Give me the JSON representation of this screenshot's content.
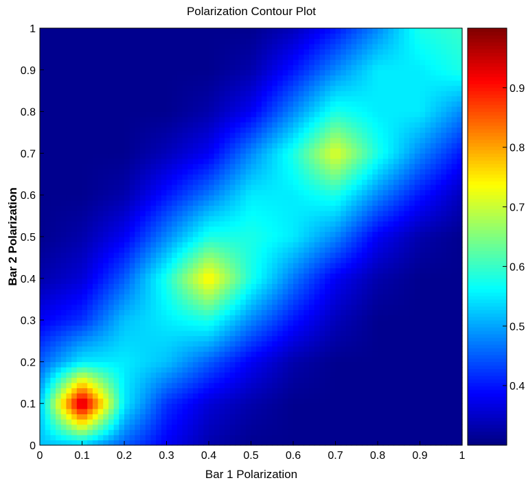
{
  "chart_data": {
    "type": "heatmap",
    "title": "Polarization Contour Plot",
    "xlabel": "Bar 1 Polarization",
    "ylabel": "Bar 2 Polarization",
    "xlim": [
      0,
      1
    ],
    "ylim": [
      0,
      1
    ],
    "x_ticks": [
      "0",
      "0.1",
      "0.2",
      "0.3",
      "0.4",
      "0.5",
      "0.6",
      "0.7",
      "0.8",
      "0.9",
      "1"
    ],
    "y_ticks": [
      "0",
      "0.1",
      "0.2",
      "0.3",
      "0.4",
      "0.5",
      "0.6",
      "0.7",
      "0.8",
      "0.9",
      "1"
    ],
    "colorbar": {
      "range": [
        0.3,
        1.0
      ],
      "ticks": [
        "0.4",
        "0.5",
        "0.6",
        "0.7",
        "0.8",
        "0.9"
      ],
      "colormap": "jet"
    },
    "grid_x": [
      0,
      0.1,
      0.2,
      0.3,
      0.4,
      0.5,
      0.6,
      0.7,
      0.8,
      0.9,
      1.0
    ],
    "grid_y": [
      0,
      0.1,
      0.2,
      0.3,
      0.4,
      0.5,
      0.6,
      0.7,
      0.8,
      0.9,
      1.0
    ],
    "values": [
      [
        0.52,
        0.52,
        0.45,
        0.38,
        0.33,
        0.31,
        0.31,
        0.31,
        0.31,
        0.31,
        0.31
      ],
      [
        0.52,
        0.97,
        0.55,
        0.42,
        0.36,
        0.33,
        0.31,
        0.31,
        0.31,
        0.31,
        0.31
      ],
      [
        0.45,
        0.55,
        0.55,
        0.52,
        0.45,
        0.38,
        0.33,
        0.31,
        0.31,
        0.31,
        0.31
      ],
      [
        0.38,
        0.42,
        0.52,
        0.55,
        0.58,
        0.48,
        0.4,
        0.34,
        0.31,
        0.31,
        0.31
      ],
      [
        0.33,
        0.36,
        0.45,
        0.58,
        0.75,
        0.58,
        0.47,
        0.38,
        0.33,
        0.31,
        0.31
      ],
      [
        0.31,
        0.33,
        0.38,
        0.48,
        0.58,
        0.58,
        0.55,
        0.48,
        0.38,
        0.33,
        0.31
      ],
      [
        0.31,
        0.31,
        0.33,
        0.4,
        0.47,
        0.55,
        0.55,
        0.58,
        0.48,
        0.4,
        0.34
      ],
      [
        0.31,
        0.31,
        0.31,
        0.34,
        0.38,
        0.48,
        0.58,
        0.72,
        0.58,
        0.48,
        0.4
      ],
      [
        0.31,
        0.31,
        0.31,
        0.31,
        0.33,
        0.38,
        0.48,
        0.58,
        0.55,
        0.55,
        0.48
      ],
      [
        0.31,
        0.31,
        0.31,
        0.31,
        0.31,
        0.33,
        0.4,
        0.48,
        0.55,
        0.55,
        0.58
      ],
      [
        0.31,
        0.31,
        0.31,
        0.31,
        0.31,
        0.31,
        0.34,
        0.4,
        0.48,
        0.58,
        0.6
      ]
    ]
  }
}
